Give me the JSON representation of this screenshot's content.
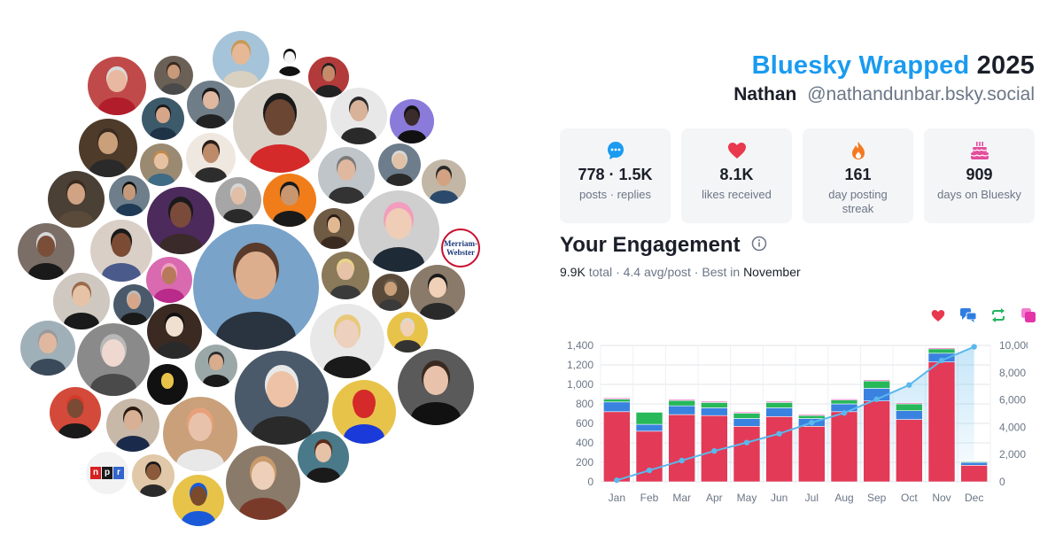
{
  "header": {
    "brand": "Bluesky Wrapped",
    "year": "2025",
    "display_name": "Nathan",
    "handle": "@nathandunbar.bsky.social"
  },
  "stats": [
    {
      "icon": "chat-bubble-icon",
      "value": "778 · 1.5K",
      "label": "posts · replies",
      "color": "#1a9bf0"
    },
    {
      "icon": "heart-icon",
      "value": "8.1K",
      "label": "likes received",
      "color": "#e8394f"
    },
    {
      "icon": "flame-icon",
      "value": "161",
      "label": "day posting streak",
      "color": "#f47a20"
    },
    {
      "icon": "cake-icon",
      "value": "909",
      "label": "days on Bluesky",
      "color": "#e34d9c"
    }
  ],
  "engagement": {
    "title": "Your Engagement",
    "total": "9.9K",
    "total_word": "total",
    "avg": "4.4 avg/post",
    "best_prefix": "Best in",
    "best_month": "November"
  },
  "legend": [
    {
      "icon": "heart-icon",
      "color": "#e8394f"
    },
    {
      "icon": "replies-icon",
      "color": "#2f7de1"
    },
    {
      "icon": "repost-icon",
      "color": "#22b35e"
    },
    {
      "icon": "quote-icon",
      "color": "#e334a8"
    }
  ],
  "chart_data": {
    "type": "bar",
    "categories": [
      "Jan",
      "Feb",
      "Mar",
      "Apr",
      "May",
      "Jun",
      "Jul",
      "Aug",
      "Sep",
      "Oct",
      "Nov",
      "Dec"
    ],
    "stacked": true,
    "series": [
      {
        "values": [
          720,
          520,
          690,
          680,
          570,
          670,
          570,
          720,
          830,
          640,
          1230,
          170
        ],
        "color": "#e23a57"
      },
      {
        "values": [
          100,
          70,
          90,
          80,
          80,
          90,
          80,
          80,
          130,
          90,
          90,
          30
        ],
        "color": "#3a82e0"
      },
      {
        "values": [
          30,
          125,
          55,
          55,
          55,
          55,
          30,
          40,
          75,
          70,
          45,
          10
        ],
        "color": "#27b85a"
      },
      {
        "values": [
          10,
          5,
          10,
          10,
          10,
          10,
          10,
          10,
          10,
          10,
          10,
          5
        ],
        "color": "#e334a8"
      }
    ],
    "cumulative": {
      "values": [
        120,
        840,
        1560,
        2260,
        2880,
        3530,
        4340,
        5050,
        6050,
        7100,
        8900,
        9900
      ],
      "color": "#5bb8ec"
    },
    "y_left": {
      "ticks": [
        0,
        200,
        400,
        600,
        800,
        "1,000",
        "1,200",
        "1,400"
      ],
      "ylim": [
        0,
        1400
      ]
    },
    "y_right": {
      "ticks": [
        0,
        "2,000",
        "4,000",
        "6,000",
        "8,000",
        "10,000"
      ],
      "ylim": [
        0,
        10000
      ]
    },
    "grid": true
  },
  "avatars": {
    "npr_letters": [
      "n",
      "p",
      "r"
    ],
    "mw_lines": [
      "Merriam-",
      "Webster"
    ]
  }
}
